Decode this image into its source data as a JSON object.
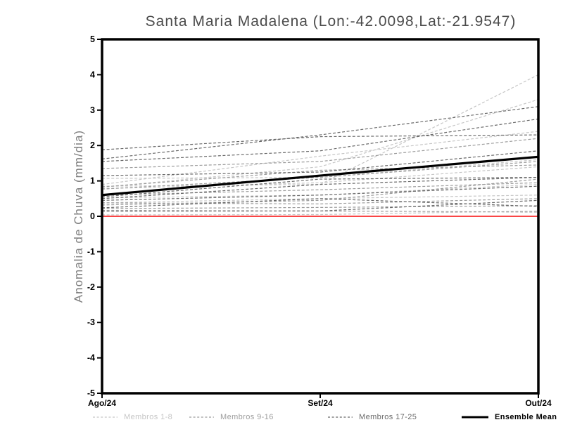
{
  "chart": {
    "title": "Santa Maria Madalena (Lon:-42.0098,Lat:-21.9547)",
    "ylabel": "Anomalia de Chuva (mm/dia)"
  },
  "chart_data": {
    "type": "line",
    "title": "Santa Maria Madalena (Lon:-42.0098,Lat:-21.9547)",
    "xlabel": "",
    "ylabel": "Anomalia de Chuva (mm/dia)",
    "categories": [
      "Ago/24",
      "Set/24",
      "Out/24"
    ],
    "ylim": [
      -5,
      5
    ],
    "y_ticks": [
      "5",
      "4",
      "3",
      "2",
      "1",
      "0",
      "-1",
      "-2",
      "-3",
      "-4",
      "-5"
    ],
    "grid": false,
    "legend_position": "bottom",
    "frame_color": "#000000",
    "tick_label_color": "#000000",
    "zero_line": {
      "value": 0,
      "color": "#fa4646"
    },
    "ensemble_mean": {
      "name": "Ensemble Mean",
      "color": "#000000",
      "values": [
        0.6,
        1.15,
        1.68
      ]
    },
    "member_groups": [
      {
        "name": "Membros 1-8",
        "color": "#c6c6c6",
        "members": [
          [
            1.07,
            1.1,
            1.6
          ],
          [
            0.9,
            1.7,
            2.4
          ],
          [
            0.85,
            0.9,
            4.0
          ],
          [
            0.82,
            1.4,
            3.3
          ],
          [
            0.78,
            0.95,
            1.4
          ],
          [
            0.52,
            0.6,
            0.9
          ],
          [
            0.38,
            0.5,
            0.6
          ],
          [
            0.04,
            0.05,
            0.15
          ]
        ]
      },
      {
        "name": "Membros 9-16",
        "color": "#9d9d9d",
        "members": [
          [
            1.35,
            1.55,
            2.2
          ],
          [
            0.83,
            1.3,
            1.45
          ],
          [
            0.77,
            1.1,
            1.55
          ],
          [
            0.6,
            0.75,
            0.95
          ],
          [
            0.38,
            0.35,
            0.5
          ],
          [
            0.32,
            0.45,
            1.05
          ],
          [
            0.22,
            0.25,
            0.3
          ],
          [
            0.14,
            0.15,
            0.12
          ]
        ]
      },
      {
        "name": "Membros 17-25",
        "color": "#6a6a6a",
        "members": [
          [
            1.88,
            2.25,
            2.3
          ],
          [
            1.62,
            2.3,
            3.1
          ],
          [
            1.55,
            1.85,
            2.75
          ],
          [
            1.15,
            1.25,
            1.85
          ],
          [
            0.55,
            1.05,
            1.1
          ],
          [
            0.5,
            0.9,
            1.1
          ],
          [
            0.45,
            0.6,
            0.85
          ],
          [
            0.24,
            0.5,
            0.28
          ],
          [
            0.16,
            0.15,
            0.45
          ]
        ]
      }
    ]
  },
  "legend": {
    "items": [
      {
        "label": "Membros 1-8",
        "color": "#c6c6c6",
        "style": "dashed"
      },
      {
        "label": "Membros 9-16",
        "color": "#9d9d9d",
        "style": "dashed"
      },
      {
        "label": "Membros 17-25",
        "color": "#6a6a6a",
        "style": "dashed"
      },
      {
        "label": "Ensemble Mean",
        "color": "#000000",
        "style": "solid"
      }
    ]
  }
}
